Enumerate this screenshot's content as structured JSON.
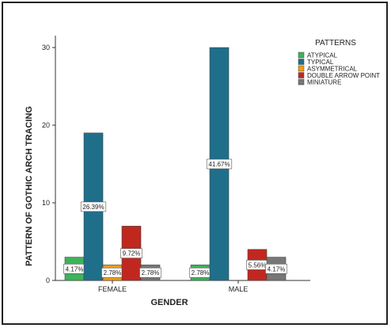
{
  "chart_data": {
    "type": "bar",
    "xlabel": "GENDER",
    "ylabel": "PATTERN OF GOTHIC ARCH TRACING",
    "legend_title": "PATTERNS",
    "ylim": [
      0,
      32
    ],
    "yticks": [
      "0",
      "10",
      "20",
      "30"
    ],
    "categories": [
      "FEMALE",
      "MALE"
    ],
    "series": [
      {
        "name": "ATYPICAL",
        "color": "#3db35a",
        "values": [
          3,
          2
        ],
        "labels": [
          "4.17%",
          "2.78%"
        ]
      },
      {
        "name": "TYPICAL",
        "color": "#1f6f8b",
        "values": [
          19,
          30
        ],
        "labels": [
          "26.39%",
          "41.67%"
        ]
      },
      {
        "name": "ASYMMETRICAL",
        "color": "#f39c12",
        "values": [
          2,
          null
        ],
        "labels": [
          "2.78%",
          null
        ]
      },
      {
        "name": "DOUBLE ARROW POINT",
        "color": "#c0281f",
        "values": [
          7,
          4
        ],
        "labels": [
          "9.72%",
          "5.56%"
        ]
      },
      {
        "name": "MINIATURE",
        "color": "#777777",
        "values": [
          2,
          3
        ],
        "labels": [
          "2.78%",
          "4.17%"
        ]
      }
    ],
    "grid": false,
    "legend_position": "top-right"
  }
}
